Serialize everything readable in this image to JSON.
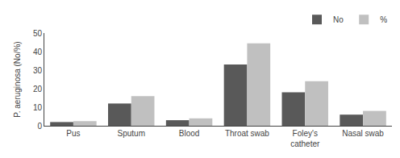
{
  "chart_data": {
    "type": "bar",
    "categories": [
      "Pus",
      "Sputum",
      "Blood",
      "Throat swab",
      "Foley's\ncatheter",
      "Nasal swab"
    ],
    "series": [
      {
        "name": "No",
        "color": "#595959",
        "values": [
          2,
          12,
          3,
          33,
          18,
          6
        ]
      },
      {
        "name": "%",
        "color": "#c0c0c0",
        "values": [
          2.5,
          16,
          4,
          44.5,
          24,
          8
        ]
      }
    ],
    "ylabel": "P. aeruginosa (No/%)",
    "ylim": [
      0,
      50
    ],
    "yticks": [
      0,
      10,
      20,
      30,
      40,
      50
    ],
    "grid": false,
    "legend": "upper right"
  }
}
